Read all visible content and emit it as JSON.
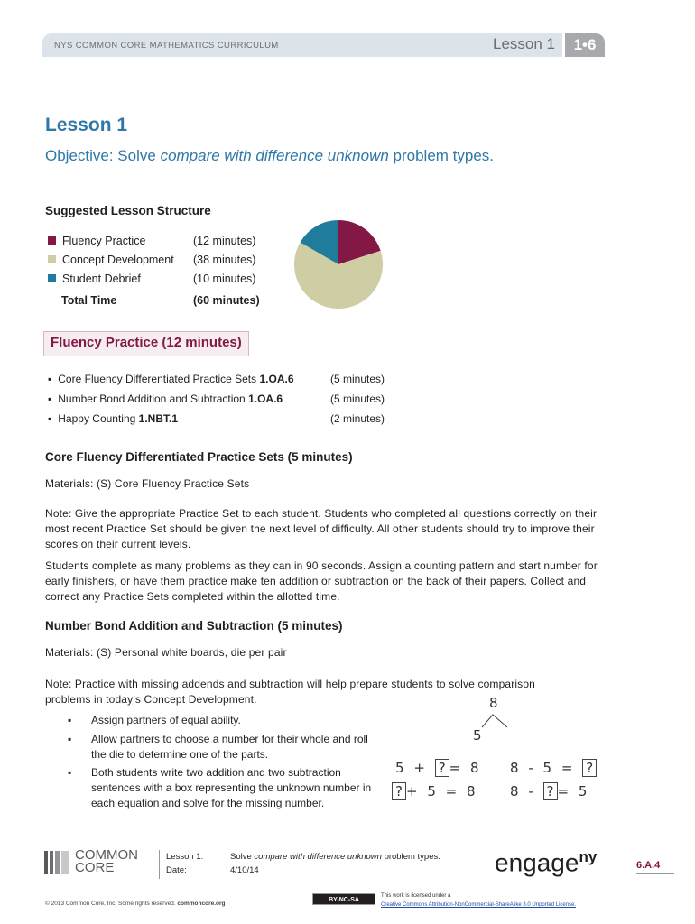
{
  "header": {
    "curriculum": "NYS COMMON CORE MATHEMATICS CURRICULUM",
    "lesson": "Lesson 1",
    "module": "1•6"
  },
  "title": "Lesson 1",
  "objective": {
    "prefix": "Objective:  Solve ",
    "italic": "compare with difference unknown",
    "suffix": " problem types."
  },
  "structure": {
    "heading": "Suggested Lesson Structure",
    "items": [
      {
        "label": "Fluency Practice",
        "time": "(12 minutes)",
        "minutes": 12,
        "color": "#831746"
      },
      {
        "label": "Concept Development",
        "time": "(38 minutes)",
        "minutes": 38,
        "color": "#cfcda4"
      },
      {
        "label": "Student Debrief",
        "time": "(10 minutes)",
        "minutes": 10,
        "color": "#1f7c9b"
      }
    ],
    "total_label": "Total Time",
    "total_time": "(60 minutes)"
  },
  "fluency": {
    "heading": "Fluency Practice  (12 minutes)",
    "items": [
      {
        "label": "Core Fluency Differentiated Practice Sets  ",
        "std": "1.OA.6",
        "time": "(5 minutes)"
      },
      {
        "label": "Number Bond Addition and Subtraction  ",
        "std": "1.OA.6",
        "time": "(5 minutes)"
      },
      {
        "label": "Happy Counting  ",
        "std": "1.NBT.1",
        "time": "(2 minutes)"
      }
    ]
  },
  "core": {
    "heading": "Core Fluency Differentiated Practice Sets  (5 minutes)",
    "materials": "Materials:   (S) Core Fluency Practice Sets",
    "note": "Note:  Give the appropriate Practice Set to each student.  Students who completed all questions correctly on their most recent Practice Set should be given the next level of difficulty.  All other students should try to improve their scores on their current levels.",
    "p2": "Students complete as many problems as they can in 90 seconds.  Assign a counting pattern and start number for early finishers, or have them practice make ten addition or subtraction on the back of their papers.  Collect and correct any Practice Sets completed within the allotted time."
  },
  "bond": {
    "heading": "Number Bond Addition and Subtraction  (5 minutes)",
    "materials": "Materials:   (S) Personal white boards, die per pair",
    "note": "Note:  Practice with missing addends and subtraction will help prepare students to solve comparison problems in today’s Concept Development.",
    "steps": [
      "Assign partners of equal ability.",
      "Allow partners to choose a number for their whole and roll the die to determine one of the parts.",
      "Both students write two addition and two subtraction sentences with a box representing the unknown number in each equation and solve for the missing number."
    ],
    "figure": {
      "whole": "8",
      "part": "5",
      "eq1": [
        "5",
        "+",
        "?",
        "=",
        "8"
      ],
      "eq2": [
        "8",
        "-",
        "5",
        "=",
        "?"
      ],
      "eq3": [
        "?",
        "+",
        "5",
        "=",
        "8"
      ],
      "eq4": [
        "8",
        "-",
        "?",
        "=",
        "5"
      ]
    }
  },
  "footer": {
    "logo": "COMMON CORE",
    "lesson_label": "Lesson 1:",
    "date_label": "Date:",
    "lesson_prefix": "Solve ",
    "lesson_italic": "compare with difference unknown",
    "lesson_suffix": " problem types.",
    "date": "4/10/14",
    "brand": "engage",
    "brand_sup": "ny",
    "page": "6.A.4",
    "copyright": "© 2013 Common Core, Inc. Some rights reserved. ",
    "site": "commoncore.org",
    "cc": "BY-NC-SA",
    "license_text": "This work is licensed under a",
    "license_link": "Creative Commons Attribution-NonCommercial-ShareAlike 3.0 Unported License."
  }
}
